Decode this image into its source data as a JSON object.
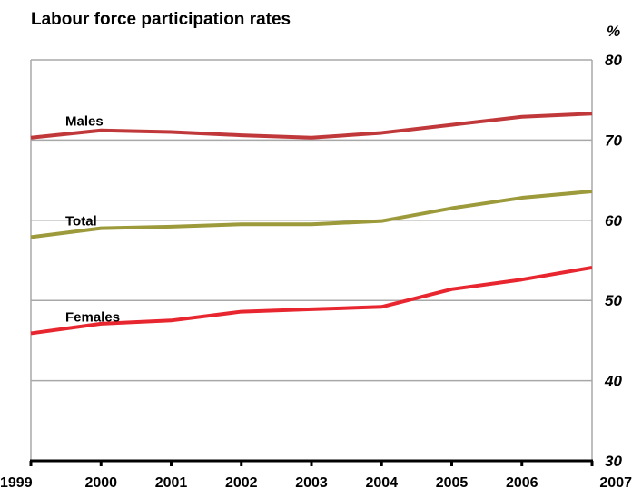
{
  "chart_data": {
    "type": "line",
    "title": "Labour force participation rates",
    "unit": "%",
    "x": [
      "1999",
      "2000",
      "2001",
      "2002",
      "2003",
      "2004",
      "2005",
      "2006",
      "2007"
    ],
    "ylim": [
      30,
      80
    ],
    "yticks": [
      30,
      40,
      50,
      60,
      70,
      80
    ],
    "grid": true,
    "y_axis_position": "right",
    "series": [
      {
        "name": "Males",
        "color": "#c0383a",
        "values": [
          70.3,
          71.2,
          71.0,
          70.6,
          70.3,
          70.9,
          71.9,
          72.9,
          73.3
        ]
      },
      {
        "name": "Total",
        "color": "#9c9a3a",
        "values": [
          57.9,
          59.0,
          59.2,
          59.5,
          59.5,
          59.9,
          61.5,
          62.8,
          63.6
        ]
      },
      {
        "name": "Females",
        "color": "#e8262f",
        "values": [
          45.9,
          47.1,
          47.5,
          48.6,
          48.9,
          49.2,
          51.4,
          52.6,
          54.1
        ]
      }
    ]
  }
}
